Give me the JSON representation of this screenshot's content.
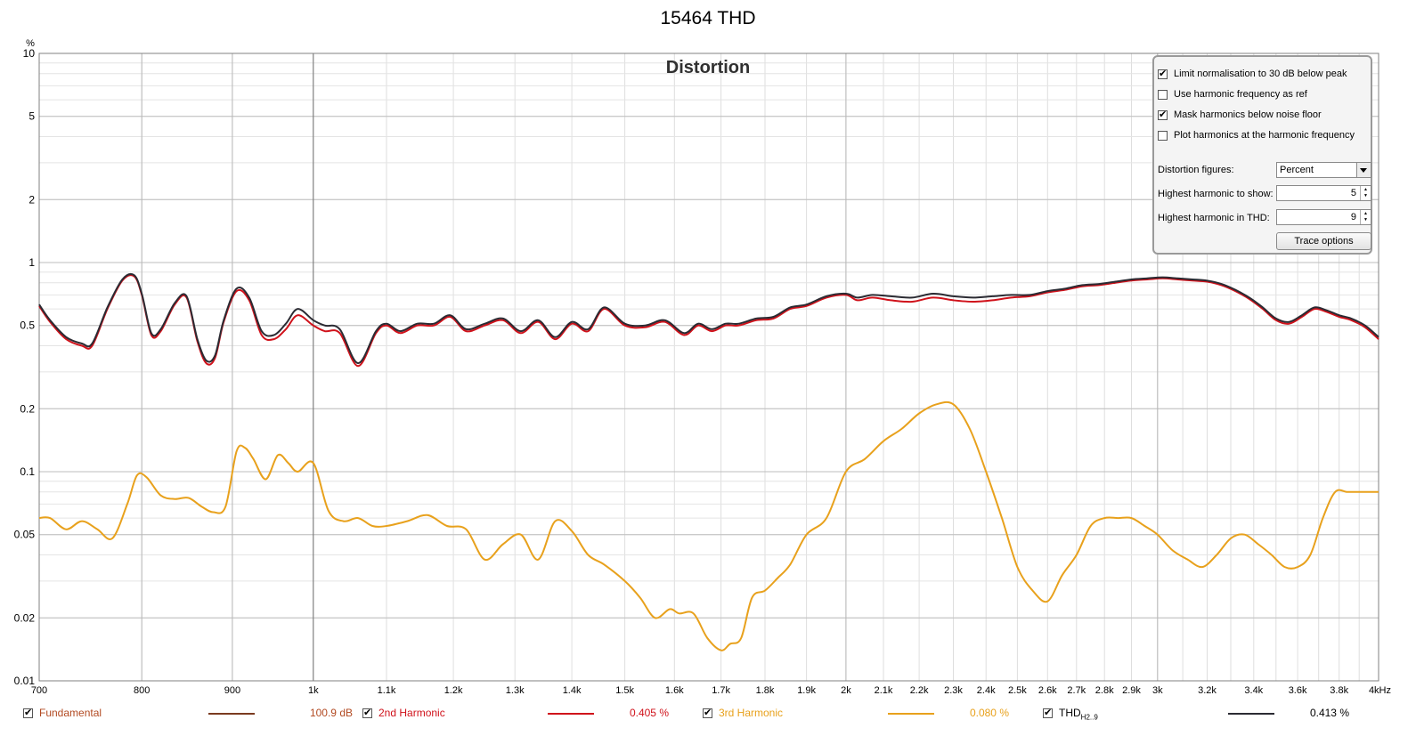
{
  "title": "15464 THD",
  "panel": {
    "checkboxes": [
      {
        "label": "Limit normalisation to 30 dB below peak",
        "checked": true
      },
      {
        "label": "Use harmonic frequency as ref",
        "checked": false
      },
      {
        "label": "Mask harmonics below noise floor",
        "checked": true
      },
      {
        "label": "Plot harmonics at the harmonic frequency",
        "checked": false
      }
    ],
    "distortion_figures_label": "Distortion figures:",
    "distortion_figures_value": "Percent",
    "highest_show_label": "Highest harmonic to show:",
    "highest_show_value": "5",
    "highest_thd_label": "Highest harmonic in THD:",
    "highest_thd_value": "9",
    "trace_options_label": "Trace options"
  },
  "legend": [
    {
      "name": "Fundamental",
      "value": "100.9 dB",
      "color": "#7a3b20",
      "text_color": "#b24a22",
      "checked": true
    },
    {
      "name": "2nd Harmonic",
      "value": "0.405 %",
      "color": "#d0121b",
      "text_color": "#d0121b",
      "checked": true
    },
    {
      "name": "3rd Harmonic",
      "value": "0.080 %",
      "color": "#e8a11c",
      "text_color": "#e8a11c",
      "checked": true
    },
    {
      "name": "THD",
      "name_sub": "H2..9",
      "value": "0.413 %",
      "color": "#2b2b33",
      "text_color": "#000000",
      "checked": true
    }
  ],
  "chart_data": {
    "type": "line",
    "title": "Distortion",
    "ylabel": "%",
    "xscale": "log",
    "yscale": "log",
    "xlim": [
      700,
      4000
    ],
    "ylim": [
      0.01,
      10
    ],
    "xticks": [
      700,
      800,
      900,
      1000,
      1100,
      1200,
      1300,
      1400,
      1500,
      1600,
      1700,
      1800,
      1900,
      2000,
      2100,
      2200,
      2300,
      2400,
      2500,
      2600,
      2700,
      2800,
      2900,
      3000,
      3200,
      3400,
      3600,
      3800,
      4000
    ],
    "xtick_labels": [
      "700",
      "800",
      "900",
      "1k",
      "1.1k",
      "1.2k",
      "1.3k",
      "1.4k",
      "1.5k",
      "1.6k",
      "1.7k",
      "1.8k",
      "1.9k",
      "2k",
      "2.1k",
      "2.2k",
      "2.3k",
      "2.4k",
      "2.5k",
      "2.6k",
      "2.7k",
      "2.8k",
      "2.9k",
      "3k",
      "3.2k",
      "3.4k",
      "3.6k",
      "3.8k",
      "4kHz"
    ],
    "yticks": [
      0.01,
      0.02,
      0.05,
      0.1,
      0.2,
      0.5,
      1,
      2,
      5,
      10
    ],
    "ytick_labels": [
      "0.01",
      "0.02",
      "0.05",
      "0.1",
      "0.2",
      "0.5",
      "1",
      "2",
      "5",
      "10"
    ],
    "grid": true,
    "series": [
      {
        "name": "2nd Harmonic",
        "color": "#d0121b",
        "x": [
          700,
          710,
          725,
          740,
          750,
          765,
          780,
          792,
          800,
          810,
          820,
          835,
          848,
          860,
          870,
          880,
          890,
          905,
          920,
          935,
          950,
          965,
          980,
          1000,
          1015,
          1035,
          1060,
          1085,
          1100,
          1120,
          1145,
          1170,
          1195,
          1220,
          1250,
          1280,
          1310,
          1340,
          1370,
          1400,
          1430,
          1460,
          1500,
          1540,
          1580,
          1620,
          1650,
          1680,
          1710,
          1740,
          1780,
          1820,
          1860,
          1900,
          1950,
          2000,
          2030,
          2070,
          2120,
          2180,
          2240,
          2300,
          2360,
          2420,
          2480,
          2540,
          2600,
          2660,
          2720,
          2780,
          2840,
          2900,
          2960,
          3020,
          3080,
          3140,
          3200,
          3260,
          3320,
          3380,
          3440,
          3500,
          3560,
          3620,
          3680,
          3740,
          3800,
          3860,
          3930,
          4000
        ],
        "y": [
          0.62,
          0.52,
          0.43,
          0.4,
          0.4,
          0.6,
          0.82,
          0.86,
          0.7,
          0.45,
          0.47,
          0.63,
          0.68,
          0.42,
          0.33,
          0.35,
          0.52,
          0.73,
          0.66,
          0.45,
          0.43,
          0.48,
          0.56,
          0.5,
          0.47,
          0.46,
          0.32,
          0.46,
          0.5,
          0.46,
          0.5,
          0.5,
          0.55,
          0.47,
          0.5,
          0.53,
          0.46,
          0.52,
          0.43,
          0.51,
          0.47,
          0.6,
          0.5,
          0.49,
          0.52,
          0.45,
          0.5,
          0.47,
          0.5,
          0.5,
          0.53,
          0.54,
          0.6,
          0.62,
          0.68,
          0.7,
          0.66,
          0.68,
          0.66,
          0.65,
          0.68,
          0.66,
          0.65,
          0.66,
          0.68,
          0.69,
          0.72,
          0.74,
          0.77,
          0.78,
          0.8,
          0.82,
          0.83,
          0.84,
          0.83,
          0.82,
          0.81,
          0.78,
          0.73,
          0.67,
          0.6,
          0.53,
          0.51,
          0.55,
          0.6,
          0.58,
          0.55,
          0.53,
          0.49,
          0.43
        ]
      },
      {
        "name": "3rd Harmonic",
        "color": "#e8a11c",
        "x": [
          700,
          710,
          725,
          740,
          755,
          770,
          785,
          795,
          805,
          820,
          835,
          850,
          865,
          878,
          892,
          905,
          915,
          925,
          940,
          955,
          968,
          980,
          1000,
          1020,
          1040,
          1060,
          1080,
          1100,
          1130,
          1160,
          1190,
          1220,
          1250,
          1280,
          1310,
          1340,
          1370,
          1400,
          1430,
          1460,
          1500,
          1530,
          1560,
          1590,
          1610,
          1640,
          1670,
          1700,
          1720,
          1745,
          1770,
          1800,
          1830,
          1860,
          1900,
          1950,
          2000,
          2050,
          2100,
          2150,
          2200,
          2250,
          2300,
          2350,
          2400,
          2450,
          2500,
          2550,
          2600,
          2650,
          2700,
          2750,
          2800,
          2850,
          2900,
          2950,
          3000,
          3060,
          3120,
          3180,
          3240,
          3300,
          3360,
          3420,
          3480,
          3540,
          3600,
          3660,
          3720,
          3780,
          3840,
          3900,
          3950,
          4000
        ],
        "y": [
          0.06,
          0.06,
          0.053,
          0.058,
          0.053,
          0.048,
          0.07,
          0.096,
          0.094,
          0.077,
          0.074,
          0.075,
          0.068,
          0.064,
          0.068,
          0.125,
          0.13,
          0.115,
          0.092,
          0.12,
          0.11,
          0.1,
          0.11,
          0.065,
          0.058,
          0.06,
          0.055,
          0.055,
          0.058,
          0.062,
          0.055,
          0.053,
          0.038,
          0.045,
          0.05,
          0.038,
          0.058,
          0.052,
          0.04,
          0.036,
          0.03,
          0.025,
          0.02,
          0.022,
          0.021,
          0.021,
          0.016,
          0.014,
          0.015,
          0.016,
          0.025,
          0.027,
          0.031,
          0.036,
          0.05,
          0.06,
          0.1,
          0.115,
          0.14,
          0.16,
          0.19,
          0.21,
          0.21,
          0.16,
          0.1,
          0.06,
          0.035,
          0.027,
          0.024,
          0.032,
          0.04,
          0.055,
          0.06,
          0.06,
          0.06,
          0.055,
          0.05,
          0.042,
          0.038,
          0.035,
          0.04,
          0.048,
          0.05,
          0.045,
          0.04,
          0.035,
          0.035,
          0.04,
          0.06,
          0.08,
          0.08,
          0.08,
          0.08,
          0.08
        ]
      },
      {
        "name": "THD",
        "color": "#2b2b33",
        "x": [
          700,
          710,
          725,
          740,
          750,
          765,
          780,
          792,
          800,
          810,
          820,
          835,
          848,
          860,
          870,
          880,
          890,
          905,
          920,
          935,
          950,
          965,
          980,
          1000,
          1015,
          1035,
          1060,
          1085,
          1100,
          1120,
          1145,
          1170,
          1195,
          1220,
          1250,
          1280,
          1310,
          1340,
          1370,
          1400,
          1430,
          1460,
          1500,
          1540,
          1580,
          1620,
          1650,
          1680,
          1710,
          1740,
          1780,
          1820,
          1860,
          1900,
          1950,
          2000,
          2030,
          2070,
          2120,
          2180,
          2240,
          2300,
          2360,
          2420,
          2480,
          2540,
          2600,
          2660,
          2720,
          2780,
          2840,
          2900,
          2960,
          3020,
          3080,
          3140,
          3200,
          3260,
          3320,
          3380,
          3440,
          3500,
          3560,
          3620,
          3680,
          3740,
          3800,
          3860,
          3930,
          4000
        ],
        "y": [
          0.63,
          0.53,
          0.44,
          0.41,
          0.41,
          0.61,
          0.83,
          0.87,
          0.71,
          0.46,
          0.48,
          0.64,
          0.69,
          0.43,
          0.34,
          0.36,
          0.53,
          0.75,
          0.68,
          0.47,
          0.45,
          0.51,
          0.6,
          0.53,
          0.5,
          0.48,
          0.33,
          0.47,
          0.51,
          0.47,
          0.51,
          0.51,
          0.56,
          0.48,
          0.51,
          0.54,
          0.47,
          0.53,
          0.44,
          0.52,
          0.48,
          0.61,
          0.51,
          0.5,
          0.53,
          0.46,
          0.51,
          0.48,
          0.51,
          0.51,
          0.54,
          0.55,
          0.61,
          0.63,
          0.69,
          0.71,
          0.68,
          0.7,
          0.69,
          0.68,
          0.71,
          0.69,
          0.68,
          0.69,
          0.7,
          0.7,
          0.73,
          0.75,
          0.78,
          0.79,
          0.81,
          0.83,
          0.84,
          0.85,
          0.84,
          0.83,
          0.82,
          0.79,
          0.74,
          0.68,
          0.61,
          0.54,
          0.52,
          0.56,
          0.61,
          0.59,
          0.56,
          0.54,
          0.5,
          0.44
        ]
      }
    ]
  }
}
